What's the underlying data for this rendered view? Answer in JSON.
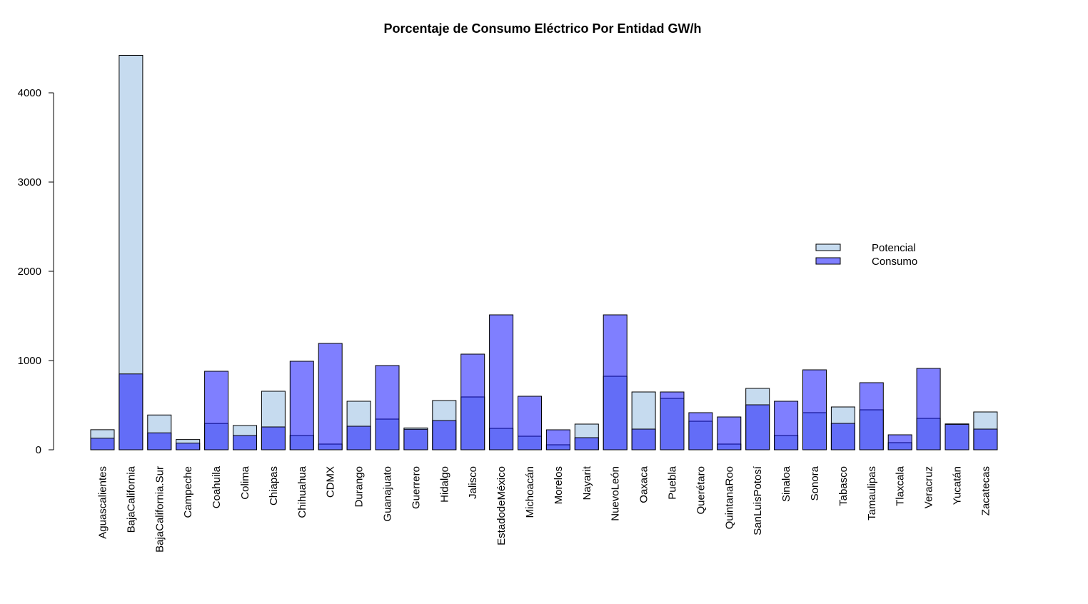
{
  "chart_data": {
    "type": "bar",
    "title": "Porcentaje de Consumo Eléctrico Por Entidad GW/h",
    "categories": [
      "Aguascalientes",
      "BajaCalifornia",
      "BajaCalifornia.Sur",
      "Campeche",
      "Coahuila",
      "Colima",
      "Chiapas",
      "Chihuahua",
      "CDMX",
      "Durango",
      "Guanajuato",
      "Guerrero",
      "Hidalgo",
      "Jalisco",
      "EstadodeMéxico",
      "Michoacán",
      "Morelos",
      "Nayarit",
      "NuevoLeón",
      "Oaxaca",
      "Puebla",
      "Querétaro",
      "QuintanaRoo",
      "SanLuisPotosí",
      "Sinaloa",
      "Sonora",
      "Tabasco",
      "Tamaulipas",
      "Tlaxcala",
      "Veracruz",
      "Yucatán",
      "Zacatecas"
    ],
    "series": [
      {
        "name": "Potencial",
        "color": "#c6dbef",
        "values": [
          225,
          4420,
          390,
          115,
          295,
          272,
          656,
          160,
          64,
          544,
          344,
          245,
          552,
          592,
          240,
          152,
          56,
          288,
          824,
          648,
          576,
          320,
          64,
          688,
          160,
          416,
          480,
          448,
          80,
          352,
          290,
          424
        ]
      },
      {
        "name": "Consumo",
        "color": "rgba(0,0,255,0.5)",
        "values": [
          130,
          850,
          190,
          75,
          880,
          160,
          256,
          992,
          1192,
          264,
          944,
          230,
          328,
          1072,
          1512,
          600,
          224,
          136,
          1512,
          232,
          648,
          416,
          368,
          504,
          544,
          896,
          296,
          752,
          168,
          912,
          285,
          232
        ]
      }
    ],
    "ylim": [
      0,
      4000
    ],
    "yticks": [
      0,
      1000,
      2000,
      3000,
      4000
    ]
  }
}
